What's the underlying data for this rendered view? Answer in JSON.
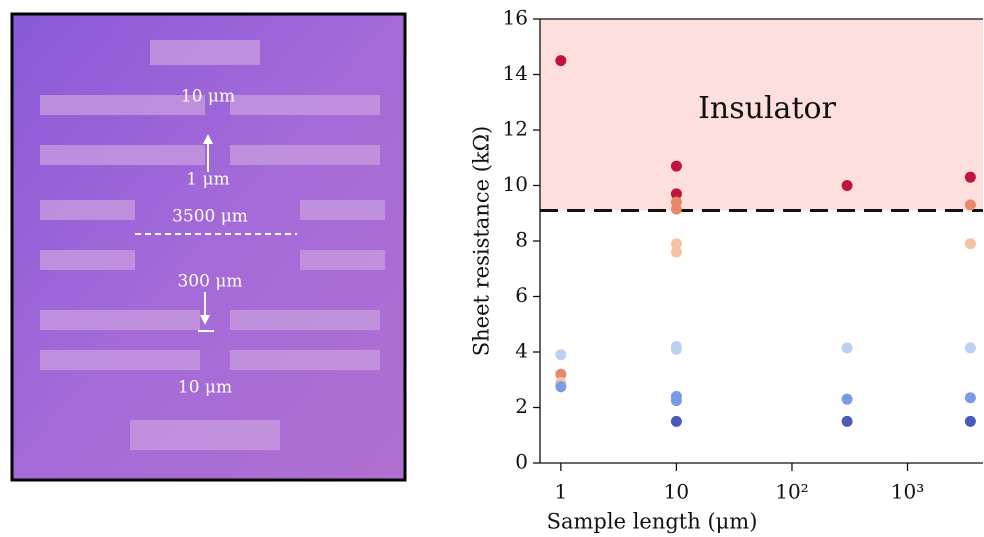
{
  "image_annotations": [
    "10 μm",
    "1 μm",
    "3500 μm",
    "300 μm",
    "10 μm"
  ],
  "chart_data": {
    "type": "scatter",
    "xlabel": "Sample length (μm)",
    "ylabel": "Sheet resistance (kΩ)",
    "annotation": "Insulator",
    "threshold": 9.1,
    "threshold_color": "#fde0dd",
    "xscale": "log",
    "xlim": [
      0.66,
      4500
    ],
    "ylim": [
      0,
      16
    ],
    "xticks": [
      1,
      10,
      {
        "value": 100,
        "label": "10²"
      },
      {
        "value": 1000,
        "label": "10³"
      }
    ],
    "yticks": [
      0,
      2,
      4,
      6,
      8,
      10,
      12,
      14,
      16
    ],
    "series": [
      {
        "color": "#c0143c",
        "x": [
          1,
          10,
          10,
          300,
          3500
        ],
        "values": [
          14.5,
          10.7,
          9.7,
          10.0,
          10.3
        ]
      },
      {
        "color": "#e8886a",
        "x": [
          1,
          10,
          10,
          3500
        ],
        "values": [
          3.2,
          9.4,
          9.15,
          9.3
        ]
      },
      {
        "color": "#f2c4a4",
        "x": [
          1,
          10,
          10,
          3500
        ],
        "values": [
          2.9,
          7.9,
          7.6,
          7.9
        ]
      },
      {
        "color": "#bcd0f0",
        "x": [
          1,
          10,
          10,
          300,
          3500
        ],
        "values": [
          3.9,
          4.2,
          4.1,
          4.15,
          4.15
        ]
      },
      {
        "color": "#7a9ae8",
        "x": [
          1,
          10,
          10,
          300,
          3500
        ],
        "values": [
          2.75,
          2.4,
          2.25,
          2.3,
          2.35
        ]
      },
      {
        "color": "#4a5ab8",
        "x": [
          10,
          300,
          3500
        ],
        "values": [
          1.5,
          1.5,
          1.5
        ]
      }
    ]
  }
}
